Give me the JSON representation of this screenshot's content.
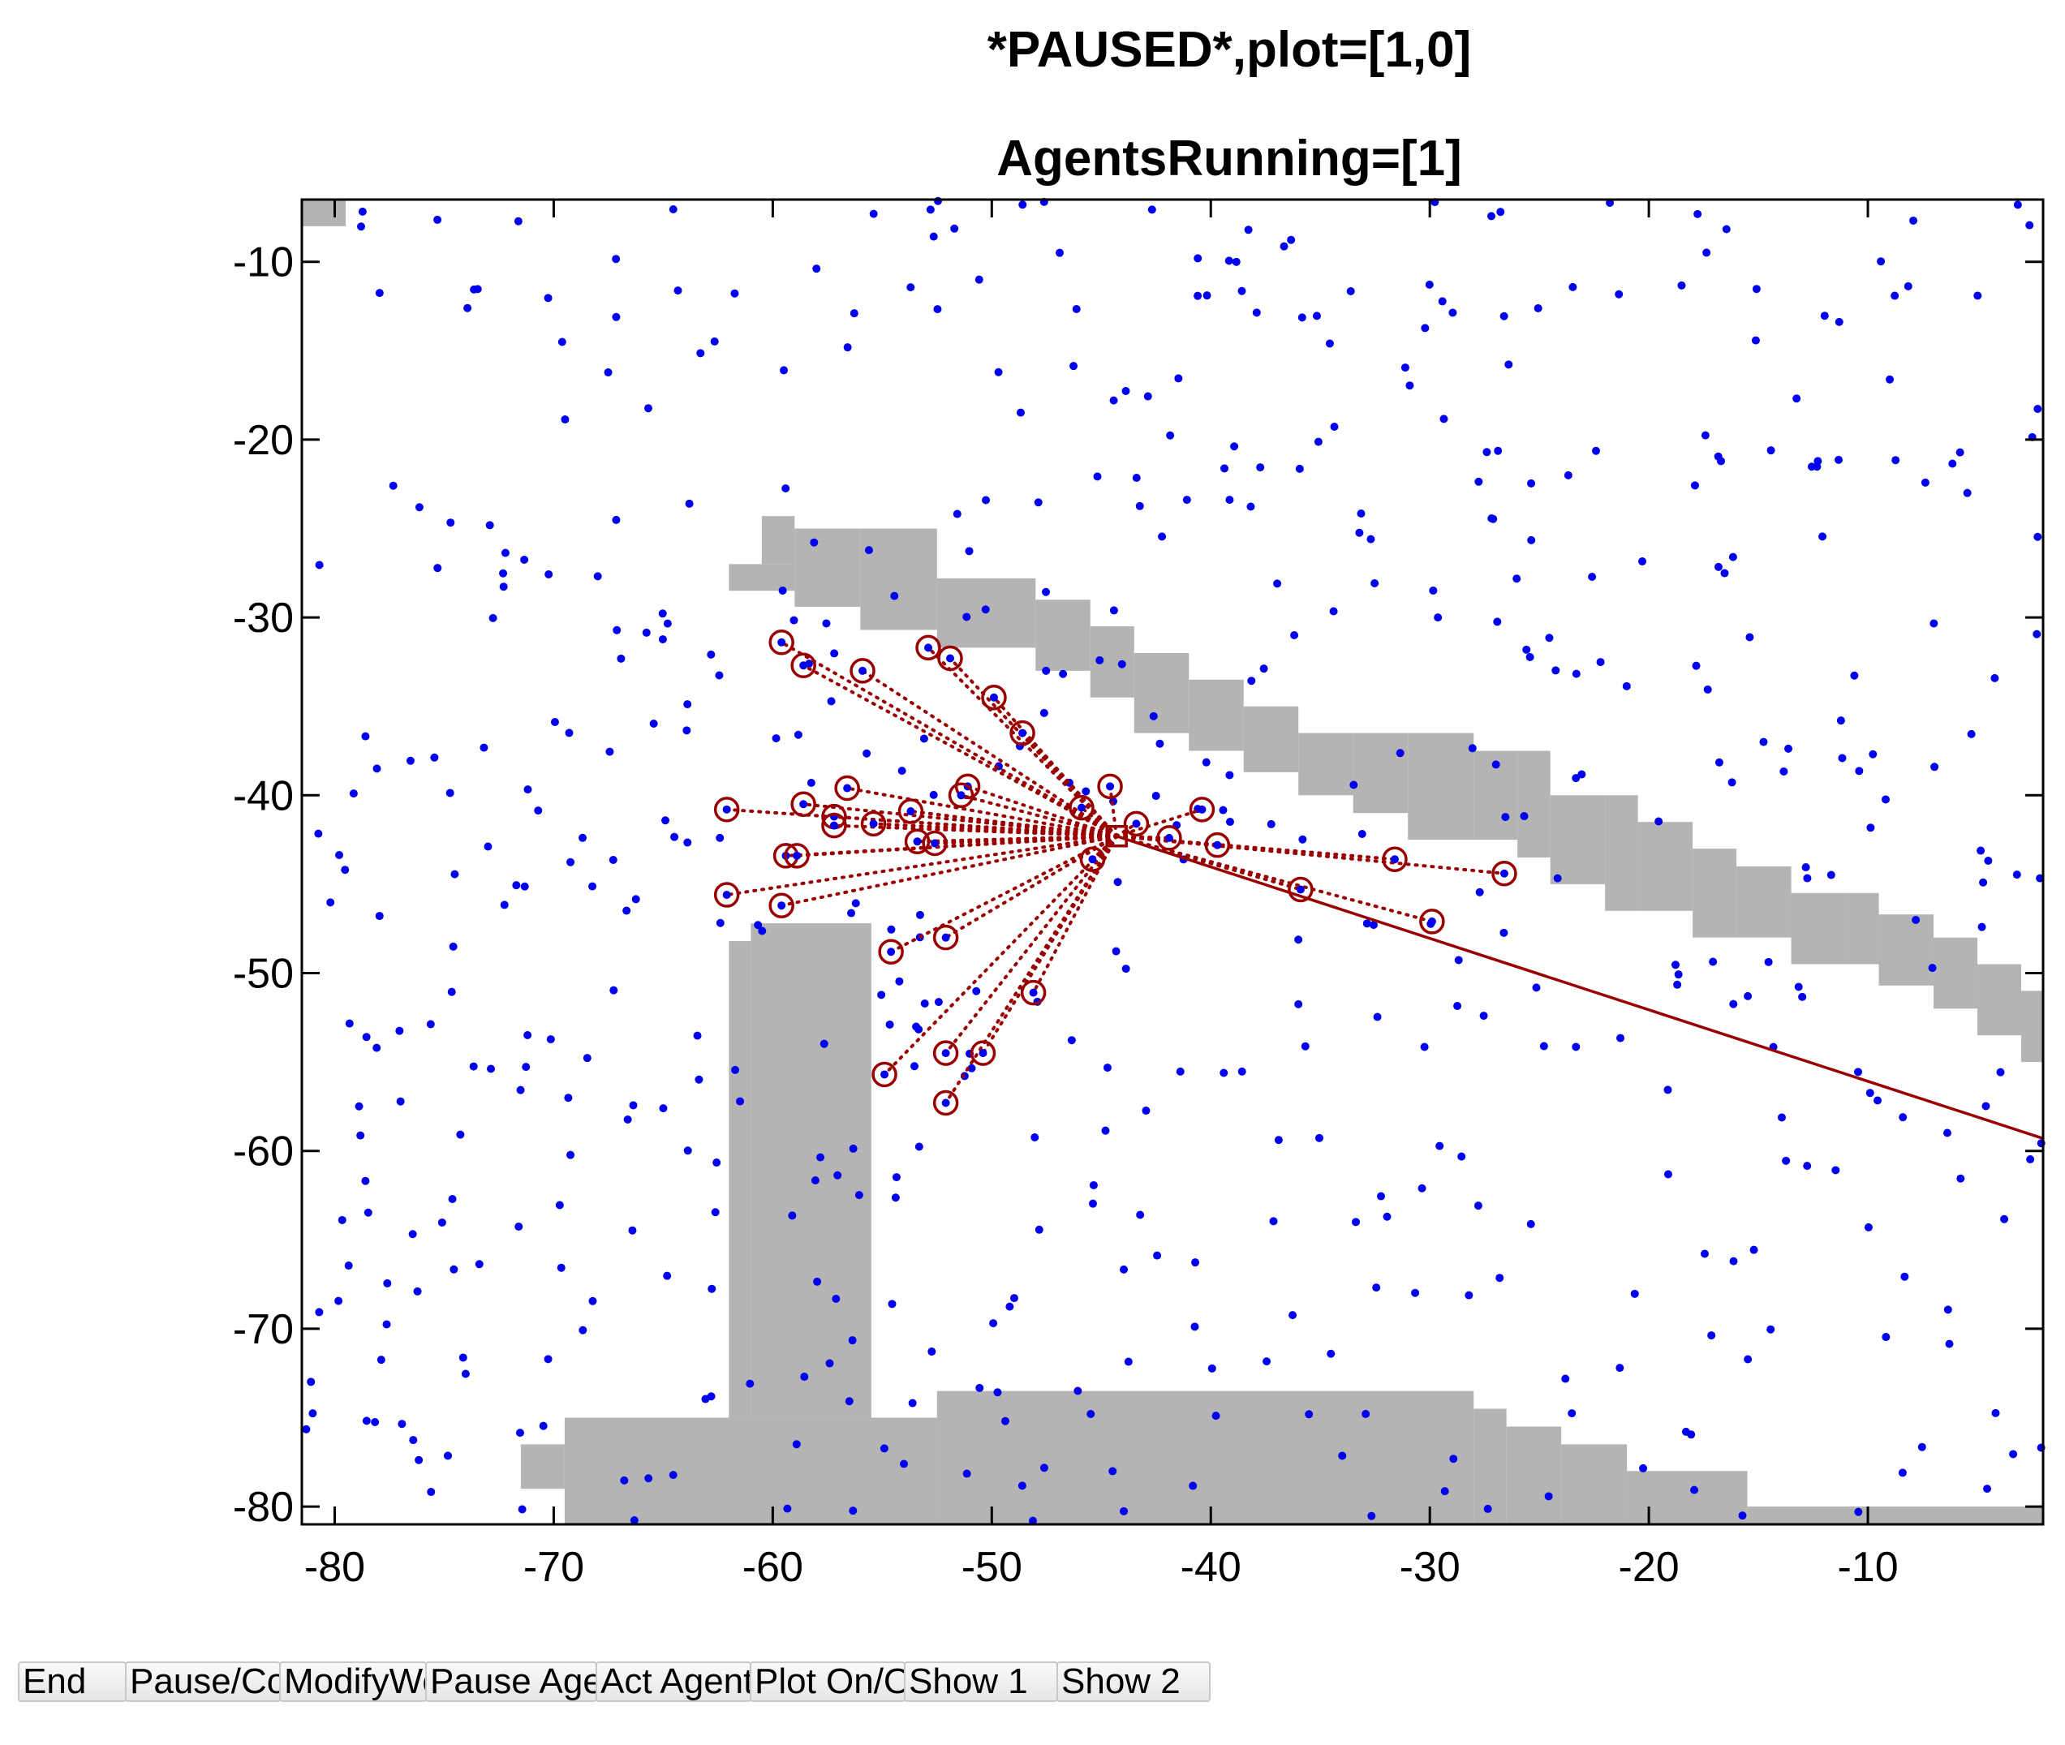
{
  "window": {
    "title_line1": "*PAUSED*,plot=[1,0]",
    "title_line2": "AgentsRunning=[1]"
  },
  "chart_data": {
    "type": "scatter",
    "title": "*PAUSED*,plot=[1,0]",
    "subtitle": "AgentsRunning=[1]",
    "xlim": [
      -81.5,
      -2
    ],
    "ylim": [
      -81,
      -6.5
    ],
    "xticks": [
      -80,
      -70,
      -60,
      -50,
      -40,
      -30,
      -20,
      -10
    ],
    "yticks": [
      -10,
      -20,
      -30,
      -40,
      -50,
      -60,
      -70,
      -80
    ],
    "grid": false,
    "colors": {
      "points": "#0000ee",
      "obstacle": "#b4b4b4",
      "sensor": "#990000"
    },
    "agent": {
      "x": -44.3,
      "y": -42.3,
      "shape": "square"
    },
    "heading_line": {
      "x": [
        -44.3,
        -2
      ],
      "y": [
        -42.3,
        -59.3
      ]
    },
    "sensed_points": [
      {
        "x": -59.6,
        "y": -31.4
      },
      {
        "x": -58.6,
        "y": -32.7
      },
      {
        "x": -55.9,
        "y": -33.0
      },
      {
        "x": -52.9,
        "y": -31.7
      },
      {
        "x": -51.9,
        "y": -32.3
      },
      {
        "x": -49.9,
        "y": -34.5
      },
      {
        "x": -48.6,
        "y": -36.5
      },
      {
        "x": -62.1,
        "y": -40.8
      },
      {
        "x": -58.6,
        "y": -40.5
      },
      {
        "x": -56.6,
        "y": -39.6
      },
      {
        "x": -57.2,
        "y": -41.2
      },
      {
        "x": -57.2,
        "y": -41.7
      },
      {
        "x": -55.4,
        "y": -41.6
      },
      {
        "x": -53.7,
        "y": -40.9
      },
      {
        "x": -51.1,
        "y": -39.5
      },
      {
        "x": -51.4,
        "y": -40.0
      },
      {
        "x": -53.4,
        "y": -42.6
      },
      {
        "x": -52.6,
        "y": -42.7
      },
      {
        "x": -45.9,
        "y": -40.7
      },
      {
        "x": -44.6,
        "y": -39.5
      },
      {
        "x": -43.4,
        "y": -41.6
      },
      {
        "x": -59.4,
        "y": -43.4
      },
      {
        "x": -58.9,
        "y": -43.4
      },
      {
        "x": -62.1,
        "y": -45.6
      },
      {
        "x": -59.6,
        "y": -46.2
      },
      {
        "x": -45.4,
        "y": -43.6
      },
      {
        "x": -41.9,
        "y": -42.4
      },
      {
        "x": -40.4,
        "y": -40.8
      },
      {
        "x": -39.7,
        "y": -42.8
      },
      {
        "x": -35.9,
        "y": -45.3
      },
      {
        "x": -31.6,
        "y": -43.6
      },
      {
        "x": -26.6,
        "y": -44.4
      },
      {
        "x": -29.9,
        "y": -47.1
      },
      {
        "x": -54.6,
        "y": -48.8
      },
      {
        "x": -52.1,
        "y": -48.0
      },
      {
        "x": -48.1,
        "y": -51.1
      },
      {
        "x": -54.9,
        "y": -55.7
      },
      {
        "x": -52.1,
        "y": -54.5
      },
      {
        "x": -50.4,
        "y": -54.5
      },
      {
        "x": -52.1,
        "y": -57.3
      }
    ],
    "obstacles": [
      {
        "x0": -81.5,
        "x1": -79.5,
        "y0": -8,
        "y1": -6.5
      },
      {
        "x0": -60.5,
        "x1": -59.0,
        "y0": -27,
        "y1": -24.3
      },
      {
        "x0": -62.0,
        "x1": -59.0,
        "y0": -28.5,
        "y1": -27.0
      },
      {
        "x0": -59.0,
        "x1": -56.0,
        "y0": -29.4,
        "y1": -25.0
      },
      {
        "x0": -56.0,
        "x1": -52.5,
        "y0": -30.7,
        "y1": -25.0
      },
      {
        "x0": -52.5,
        "x1": -48.0,
        "y0": -31.7,
        "y1": -27.8
      },
      {
        "x0": -48.0,
        "x1": -45.5,
        "y0": -33.0,
        "y1": -29.0
      },
      {
        "x0": -45.5,
        "x1": -43.5,
        "y0": -34.5,
        "y1": -30.5
      },
      {
        "x0": -43.5,
        "x1": -41.0,
        "y0": -36.5,
        "y1": -32.0
      },
      {
        "x0": -41.0,
        "x1": -38.5,
        "y0": -37.5,
        "y1": -33.5
      },
      {
        "x0": -38.5,
        "x1": -36.0,
        "y0": -38.7,
        "y1": -35.0
      },
      {
        "x0": -36.0,
        "x1": -33.5,
        "y0": -40.0,
        "y1": -36.5
      },
      {
        "x0": -33.5,
        "x1": -31.0,
        "y0": -41.0,
        "y1": -36.5
      },
      {
        "x0": -31.0,
        "x1": -28.0,
        "y0": -42.5,
        "y1": -36.5
      },
      {
        "x0": -28.0,
        "x1": -26.0,
        "y0": -42.5,
        "y1": -37.5
      },
      {
        "x0": -26.0,
        "x1": -24.5,
        "y0": -43.5,
        "y1": -37.5
      },
      {
        "x0": -24.5,
        "x1": -22.0,
        "y0": -45.0,
        "y1": -40.0
      },
      {
        "x0": -22.0,
        "x1": -20.5,
        "y0": -46.5,
        "y1": -40.0
      },
      {
        "x0": -20.5,
        "x1": -18.0,
        "y0": -46.5,
        "y1": -41.5
      },
      {
        "x0": -18.0,
        "x1": -16.0,
        "y0": -48.0,
        "y1": -43.0
      },
      {
        "x0": -16.0,
        "x1": -13.5,
        "y0": -48.0,
        "y1": -44.0
      },
      {
        "x0": -13.5,
        "x1": -11.0,
        "y0": -49.5,
        "y1": -45.5
      },
      {
        "x0": -11.0,
        "x1": -9.5,
        "y0": -49.5,
        "y1": -45.5
      },
      {
        "x0": -9.5,
        "x1": -7.0,
        "y0": -50.7,
        "y1": -46.7
      },
      {
        "x0": -7.0,
        "x1": -5.0,
        "y0": -52.0,
        "y1": -48.0
      },
      {
        "x0": -5.0,
        "x1": -3.0,
        "y0": -53.5,
        "y1": -49.5
      },
      {
        "x0": -3.0,
        "x1": -2.0,
        "y0": -55.0,
        "y1": -51.0
      },
      {
        "x0": -62.0,
        "x1": -61.0,
        "y0": -75.0,
        "y1": -48.2
      },
      {
        "x0": -61.0,
        "x1": -55.5,
        "y0": -75.0,
        "y1": -47.2
      },
      {
        "x0": -69.5,
        "x1": -52.5,
        "y0": -81.0,
        "y1": -75.0
      },
      {
        "x0": -71.5,
        "x1": -69.5,
        "y0": -79.0,
        "y1": -76.5
      },
      {
        "x0": -55.5,
        "x1": -52.5,
        "y0": -81.0,
        "y1": -75.0
      },
      {
        "x0": -52.5,
        "x1": -28.0,
        "y0": -81.0,
        "y1": -73.5
      },
      {
        "x0": -28.0,
        "x1": -26.5,
        "y0": -81.0,
        "y1": -74.5
      },
      {
        "x0": -26.5,
        "x1": -24.0,
        "y0": -81.0,
        "y1": -75.5
      },
      {
        "x0": -24.0,
        "x1": -21.0,
        "y0": -81.0,
        "y1": -76.5
      },
      {
        "x0": -21.0,
        "x1": -15.5,
        "y0": -81.0,
        "y1": -78.0
      },
      {
        "x0": -15.5,
        "x1": -2.0,
        "y0": -81.0,
        "y1": -80.0
      }
    ],
    "blue_point_count": 560
  },
  "buttons": [
    {
      "label": "End",
      "name": "end-button"
    },
    {
      "label": "Pause/Cont",
      "name": "pause-continue-button"
    },
    {
      "label": "ModifyWorld",
      "name": "modify-world-button"
    },
    {
      "label": "Pause Agents",
      "name": "pause-agents-button"
    },
    {
      "label": "Act Agent",
      "name": "act-agent-button"
    },
    {
      "label": "Plot On/Off",
      "name": "plot-toggle-button"
    },
    {
      "label": "Show 1",
      "name": "show-1-button"
    },
    {
      "label": "Show 2",
      "name": "show-2-button"
    }
  ]
}
